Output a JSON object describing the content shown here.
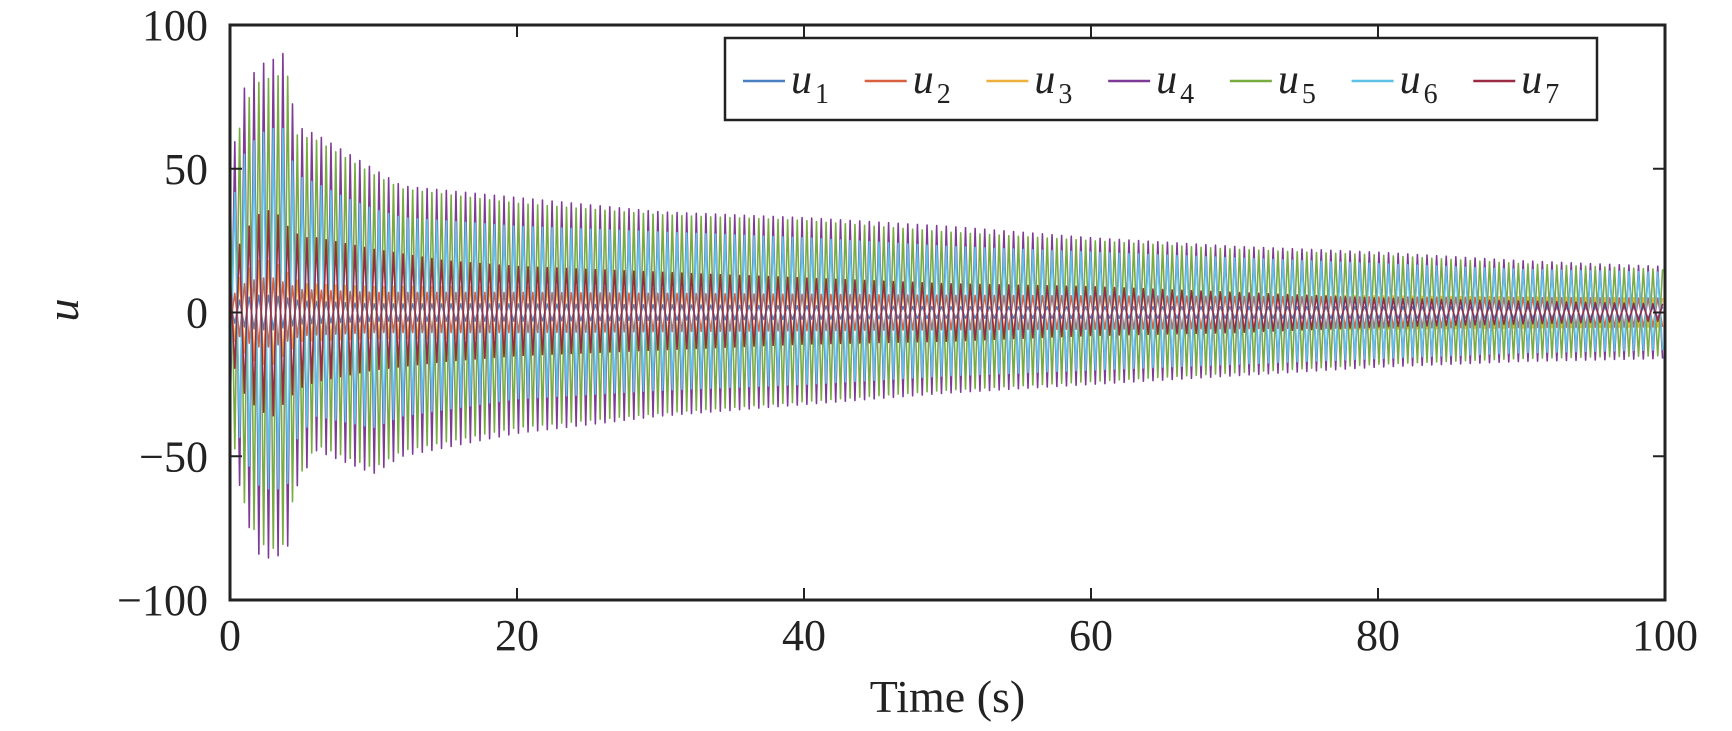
{
  "chart_data": {
    "type": "line",
    "xlabel": "Time (s)",
    "ylabel": "u",
    "xlim": [
      0,
      100
    ],
    "ylim": [
      -100,
      100
    ],
    "xticks": [
      0,
      20,
      40,
      60,
      80,
      100
    ],
    "yticks": [
      -100,
      -50,
      0,
      50,
      100
    ],
    "xtick_labels": [
      "0",
      "20",
      "40",
      "60",
      "80",
      "100"
    ],
    "ytick_labels": [
      "−100",
      "−50",
      "0",
      "50",
      "100"
    ],
    "grid": false,
    "legend_placement": "top-right",
    "legend_orientation": "horizontal",
    "oscillation_period_s": 0.67,
    "series": [
      {
        "name": "u1",
        "symbol": "u",
        "subscript": "1",
        "color": "#4a7fc1",
        "envelope": {
          "t": [
            0,
            1,
            2,
            3,
            4,
            5,
            10,
            20,
            50,
            100
          ],
          "upper": [
            3,
            5,
            6,
            6,
            5,
            4,
            3,
            3,
            2,
            2
          ],
          "lower": [
            -3,
            -5,
            -6,
            -6,
            -5,
            -4,
            -3,
            -3,
            -2,
            -2
          ]
        }
      },
      {
        "name": "u2",
        "symbol": "u",
        "subscript": "2",
        "color": "#d9613f",
        "envelope": {
          "t": [
            0,
            1,
            2,
            3,
            4,
            5,
            10,
            20,
            50,
            100
          ],
          "upper": [
            5,
            10,
            12,
            12,
            10,
            8,
            7,
            7,
            6,
            5
          ],
          "lower": [
            -5,
            -10,
            -12,
            -12,
            -10,
            -8,
            -7,
            -7,
            -6,
            -5
          ]
        }
      },
      {
        "name": "u3",
        "symbol": "u",
        "subscript": "3",
        "color": "#eeb03c",
        "envelope": {
          "t": [
            0,
            1,
            2,
            3,
            4,
            5,
            10,
            20,
            50,
            100
          ],
          "upper": [
            8,
            14,
            18,
            18,
            14,
            10,
            9,
            9,
            7,
            5
          ],
          "lower": [
            -8,
            -14,
            -18,
            -18,
            -14,
            -10,
            -9,
            -9,
            -7,
            -5
          ]
        }
      },
      {
        "name": "u4",
        "symbol": "u",
        "subscript": "4",
        "color": "#7e3b96",
        "envelope": {
          "t": [
            0,
            1,
            2,
            3,
            4,
            4.5,
            6,
            8,
            10,
            12,
            20,
            30,
            40,
            50,
            60,
            70,
            80,
            90,
            100
          ],
          "upper": [
            50,
            78,
            86,
            88,
            91,
            65,
            62,
            56,
            50,
            44,
            40,
            35,
            33,
            30,
            26,
            23,
            21,
            18,
            16
          ],
          "lower": [
            -40,
            -70,
            -84,
            -86,
            -82,
            -62,
            -48,
            -52,
            -56,
            -50,
            -42,
            -36,
            -32,
            -28,
            -25,
            -22,
            -19,
            -17,
            -16
          ]
        }
      },
      {
        "name": "u5",
        "symbol": "u",
        "subscript": "5",
        "color": "#77ac41",
        "envelope": {
          "t": [
            0,
            1,
            2,
            3,
            4,
            4.5,
            6,
            8,
            10,
            12,
            20,
            30,
            40,
            50,
            60,
            70,
            80,
            90,
            100
          ],
          "upper": [
            48,
            72,
            80,
            82,
            83,
            62,
            60,
            54,
            48,
            43,
            38,
            34,
            32,
            28,
            25,
            22,
            20,
            17,
            15
          ],
          "lower": [
            -38,
            -66,
            -80,
            -82,
            -80,
            -60,
            -46,
            -50,
            -54,
            -48,
            -40,
            -35,
            -31,
            -27,
            -24,
            -21,
            -18,
            -16,
            -15
          ]
        }
      },
      {
        "name": "u6",
        "symbol": "u",
        "subscript": "6",
        "color": "#5ec2e6",
        "envelope": {
          "t": [
            0,
            1,
            2,
            3,
            4,
            4.5,
            6,
            8,
            10,
            12,
            20,
            30,
            40,
            50,
            60,
            70,
            80,
            90,
            100
          ],
          "upper": [
            35,
            55,
            62,
            64,
            64,
            48,
            45,
            40,
            36,
            33,
            30,
            28,
            26,
            23,
            21,
            19,
            17,
            15,
            14
          ],
          "lower": [
            -30,
            -50,
            -60,
            -62,
            -60,
            -45,
            -36,
            -38,
            -40,
            -36,
            -30,
            -27,
            -25,
            -22,
            -20,
            -18,
            -16,
            -14,
            -13
          ]
        }
      },
      {
        "name": "u7",
        "symbol": "u",
        "subscript": "7",
        "color": "#9b2a45",
        "envelope": {
          "t": [
            0,
            1,
            2,
            3,
            4,
            5,
            6,
            8,
            10,
            15,
            20,
            30,
            40,
            50,
            60,
            70,
            80,
            90,
            100
          ],
          "upper": [
            15,
            28,
            34,
            36,
            30,
            26,
            26,
            24,
            22,
            18,
            16,
            14,
            12,
            10,
            9,
            7,
            5,
            4,
            3
          ],
          "lower": [
            -15,
            -28,
            -34,
            -36,
            -30,
            -26,
            -24,
            -22,
            -20,
            -17,
            -15,
            -13,
            -11,
            -10,
            -8,
            -7,
            -5,
            -4,
            -3
          ]
        }
      }
    ]
  }
}
